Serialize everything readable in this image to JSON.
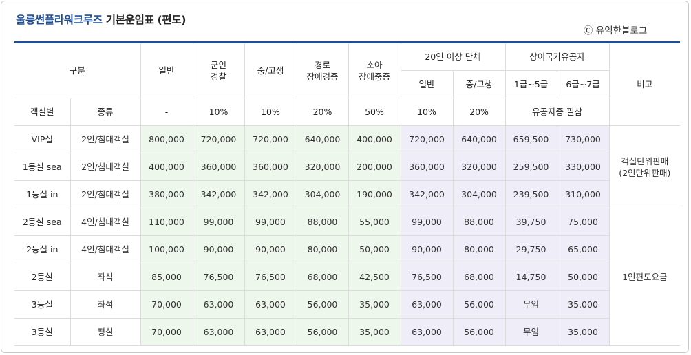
{
  "title": {
    "brand": "울릉썬플라워크루즈",
    "rest": " 기본운임표 (편도)"
  },
  "credit": "Ⓒ 유익한블로그",
  "header": {
    "category": "구분",
    "general": "일반",
    "military": "군인\n경찰",
    "student": "중/고생",
    "senior": "경로\n장애경증",
    "child": "소아\n장애중증",
    "group": "20인 이상 단체",
    "group_general": "일반",
    "group_student": "중/고생",
    "veteran": "상이국가유공자",
    "veteran_1_5": "1급~5급",
    "veteran_6_7": "6급~7급",
    "note": "비고",
    "room_class": "객실별",
    "room_type": "종류",
    "disc_general": "-",
    "disc_military": "10%",
    "disc_student": "10%",
    "disc_senior": "20%",
    "disc_child": "50%",
    "disc_group_general": "10%",
    "disc_group_student": "20%",
    "disc_veteran": "유공자증 필참"
  },
  "notes": {
    "group1": "객실단위판매\n(2인단위판매)",
    "group2": "1인편도요금"
  },
  "rows": [
    {
      "room": "VIP실",
      "type": "2인/침대객실",
      "general": "800,000",
      "military": "720,000",
      "student": "720,000",
      "senior": "640,000",
      "child": "400,000",
      "group_general": "720,000",
      "group_student": "640,000",
      "vet_1_5": "659,500",
      "vet_6_7": "730,000"
    },
    {
      "room": "1등실 sea",
      "type": "2인/침대객실",
      "general": "400,000",
      "military": "360,000",
      "student": "360,000",
      "senior": "320,000",
      "child": "200,000",
      "group_general": "360,000",
      "group_student": "320,000",
      "vet_1_5": "259,500",
      "vet_6_7": "330,000"
    },
    {
      "room": "1등실 in",
      "type": "2인/침대객실",
      "general": "380,000",
      "military": "342,000",
      "student": "342,000",
      "senior": "304,000",
      "child": "190,000",
      "group_general": "342,000",
      "group_student": "304,000",
      "vet_1_5": "239,500",
      "vet_6_7": "310,000"
    },
    {
      "room": "2등실 sea",
      "type": "4인/침대객실",
      "general": "110,000",
      "military": "99,000",
      "student": "99,000",
      "senior": "88,000",
      "child": "55,000",
      "group_general": "99,000",
      "group_student": "88,000",
      "vet_1_5": "39,750",
      "vet_6_7": "75,000"
    },
    {
      "room": "2등실 in",
      "type": "4인/침대객실",
      "general": "100,000",
      "military": "90,000",
      "student": "90,000",
      "senior": "80,000",
      "child": "50,000",
      "group_general": "90,000",
      "group_student": "80,000",
      "vet_1_5": "29,750",
      "vet_6_7": "65,000"
    },
    {
      "room": "2등실",
      "type": "좌석",
      "general": "85,000",
      "military": "76,500",
      "student": "76,500",
      "senior": "68,000",
      "child": "42,500",
      "group_general": "76,500",
      "group_student": "68,000",
      "vet_1_5": "14,750",
      "vet_6_7": "50,000"
    },
    {
      "room": "3등실",
      "type": "좌석",
      "general": "70,000",
      "military": "63,000",
      "student": "63,000",
      "senior": "56,000",
      "child": "35,000",
      "group_general": "63,000",
      "group_student": "56,000",
      "vet_1_5": "무임",
      "vet_6_7": "35,000"
    },
    {
      "room": "3등실",
      "type": "평실",
      "general": "70,000",
      "military": "63,000",
      "student": "63,000",
      "senior": "56,000",
      "child": "35,000",
      "group_general": "63,000",
      "group_student": "56,000",
      "vet_1_5": "무임",
      "vet_6_7": "35,000"
    }
  ],
  "colors": {
    "accent_blue": "#1f4e96",
    "general_fare_bg": "#eef7ec",
    "discount_fare_bg": "#efedf8"
  }
}
